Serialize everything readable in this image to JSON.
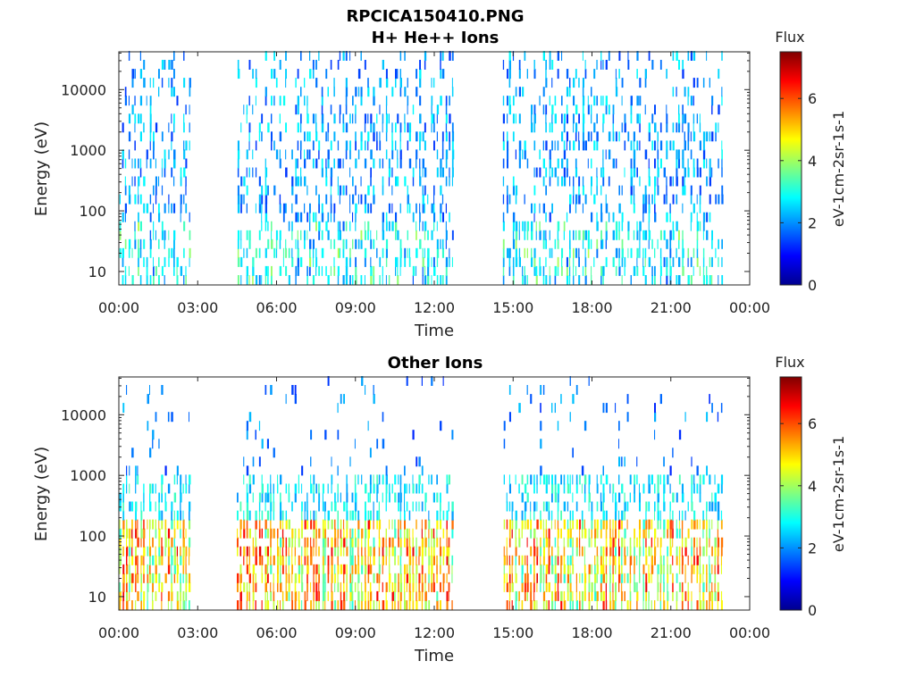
{
  "figure_title": "RPCICA150410.PNG",
  "chart_data": [
    {
      "type": "heatmap",
      "title": "H+ He++ Ions",
      "xlabel": "Time",
      "ylabel": "Energy (eV)",
      "y_scale": "log",
      "x_ticks": [
        "00:00",
        "03:00",
        "06:00",
        "09:00",
        "12:00",
        "15:00",
        "18:00",
        "21:00",
        "00:00"
      ],
      "y_ticks": [
        "10",
        "100",
        "1000",
        "10000"
      ],
      "colorbar": {
        "title": "Flux",
        "label": "eV-1cm-2sr-1s-1",
        "ticks": [
          "0",
          "2",
          "4",
          "6"
        ],
        "range": [
          0,
          7.5
        ]
      },
      "data_gaps_hours": [
        [
          2.7,
          4.5
        ],
        [
          12.7,
          14.6
        ]
      ]
    },
    {
      "type": "heatmap",
      "title": "Other Ions",
      "xlabel": "Time",
      "ylabel": "Energy (eV)",
      "y_scale": "log",
      "x_ticks": [
        "00:00",
        "03:00",
        "06:00",
        "09:00",
        "12:00",
        "15:00",
        "18:00",
        "21:00",
        "00:00"
      ],
      "y_ticks": [
        "10",
        "100",
        "1000",
        "10000"
      ],
      "colorbar": {
        "title": "Flux",
        "label": "eV-1cm-2sr-1s-1",
        "ticks": [
          "0",
          "2",
          "4",
          "6"
        ],
        "range": [
          0,
          7.5
        ]
      },
      "data_gaps_hours": [
        [
          2.7,
          4.5
        ],
        [
          12.7,
          14.6
        ]
      ]
    }
  ]
}
